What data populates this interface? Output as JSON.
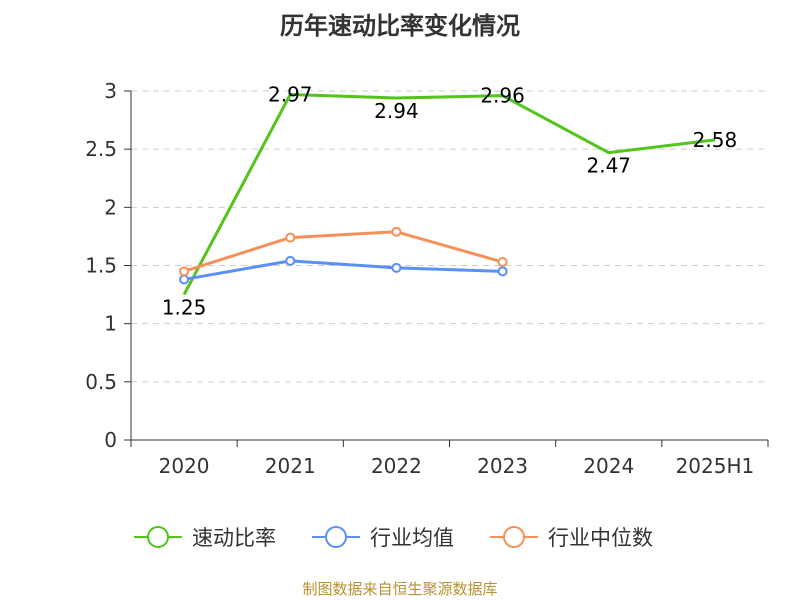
{
  "chart_data": {
    "type": "line",
    "title": "历年速动比率变化情况",
    "categories": [
      "2020",
      "2021",
      "2022",
      "2023",
      "2024",
      "2025H1"
    ],
    "ylim": [
      0,
      3
    ],
    "yticks": [
      "0",
      "0.5",
      "1",
      "1.5",
      "2",
      "2.5",
      "3"
    ],
    "grid": true,
    "legend_position": "bottom",
    "series": [
      {
        "name": "速动比率",
        "color": "#52c41a",
        "values": [
          1.25,
          2.97,
          2.94,
          2.96,
          2.47,
          2.58
        ],
        "labels": [
          "1.25",
          "2.97",
          "2.94",
          "2.96",
          "2.47",
          "2.58"
        ],
        "markers": false
      },
      {
        "name": "行业均值",
        "color": "#5b8ff9",
        "values": [
          1.38,
          1.54,
          1.48,
          1.45,
          null,
          null
        ],
        "markers": true
      },
      {
        "name": "行业中位数",
        "color": "#f6905a",
        "values": [
          1.45,
          1.74,
          1.79,
          1.53,
          null,
          null
        ],
        "markers": true
      }
    ]
  },
  "footer": {
    "source": "制图数据来自恒生聚源数据库"
  }
}
